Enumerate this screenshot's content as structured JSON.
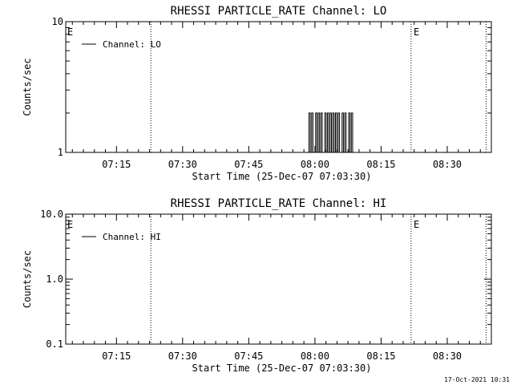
{
  "footer": {
    "timestamp": "17-Oct-2021 10:31"
  },
  "chart_data": [
    {
      "type": "line",
      "title": "RHESSI PARTICLE_RATE Channel: LO",
      "xlabel": "Start Time (25-Dec-07 07:03:30)",
      "ylabel": "Counts/sec",
      "yscale": "log",
      "ylim": [
        1,
        10
      ],
      "ytick_labels": [
        "1",
        "10"
      ],
      "xlim_minutes": [
        3.5,
        100
      ],
      "xtick_labels": [
        "07:15",
        "07:30",
        "07:45",
        "08:00",
        "08:15",
        "08:30"
      ],
      "xtick_minutes": [
        15,
        30,
        45,
        60,
        75,
        90
      ],
      "vlines_minutes": [
        22.8,
        81.8,
        98.8
      ],
      "event_markers": [
        {
          "label": "E",
          "minute": 3.5
        },
        {
          "label": "E",
          "minute": 82.0
        }
      ],
      "legend": {
        "position": "top-left",
        "entries": [
          "Channel: LO"
        ]
      },
      "series": [
        {
          "name": "Channel: LO",
          "x": [
            58.5,
            58.8,
            59.1,
            59.4,
            59.7,
            60.0,
            60.3,
            60.6,
            60.9,
            61.2,
            61.5,
            61.8,
            62.1,
            62.4,
            62.7,
            63.0,
            63.3,
            63.6,
            63.9,
            64.2,
            64.5,
            64.8,
            65.1,
            65.4,
            65.7,
            66.0,
            66.3,
            66.6,
            66.9,
            67.2,
            67.5,
            67.8,
            68.1,
            68.4
          ],
          "y": [
            1,
            2,
            1,
            2,
            1,
            1,
            2,
            1,
            2,
            1,
            2,
            1,
            1,
            2,
            1,
            2,
            1,
            2,
            1,
            2,
            1,
            2,
            1,
            2,
            1,
            1,
            2,
            1,
            2,
            1,
            1,
            2,
            1,
            2
          ]
        }
      ]
    },
    {
      "type": "line",
      "title": "RHESSI PARTICLE_RATE Channel: HI",
      "xlabel": "Start Time (25-Dec-07 07:03:30)",
      "ylabel": "Counts/sec",
      "yscale": "log",
      "ylim": [
        0.1,
        10
      ],
      "ytick_labels": [
        "0.1",
        "1.0",
        "10.0"
      ],
      "xlim_minutes": [
        3.5,
        100
      ],
      "xtick_labels": [
        "07:15",
        "07:30",
        "07:45",
        "08:00",
        "08:15",
        "08:30"
      ],
      "xtick_minutes": [
        15,
        30,
        45,
        60,
        75,
        90
      ],
      "vlines_minutes": [
        22.8,
        81.8,
        98.8
      ],
      "event_markers": [
        {
          "label": "E",
          "minute": 3.5
        },
        {
          "label": "E",
          "minute": 82.0
        }
      ],
      "legend": {
        "position": "top-left",
        "entries": [
          "Channel: HI"
        ]
      },
      "series": [
        {
          "name": "Channel: HI",
          "x": [],
          "y": []
        }
      ]
    }
  ]
}
